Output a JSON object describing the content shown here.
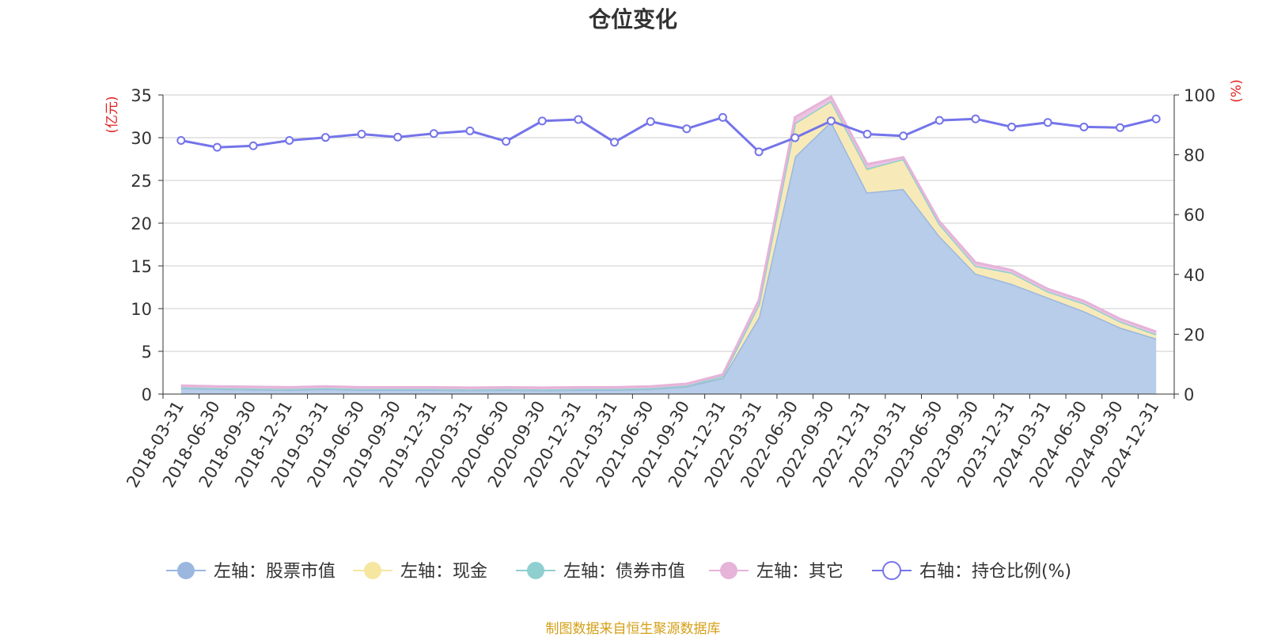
{
  "chart_data": {
    "type": "area",
    "title": "仓位变化",
    "left_axis_label": "(亿元)",
    "right_axis_label": "(%)",
    "left_ylim": [
      0,
      35
    ],
    "left_ticks": [
      0,
      5,
      10,
      15,
      20,
      25,
      30,
      35
    ],
    "right_ylim": [
      0,
      100
    ],
    "right_ticks": [
      0,
      20,
      40,
      60,
      80,
      100
    ],
    "categories": [
      "2018-03-31",
      "2018-06-30",
      "2018-09-30",
      "2018-12-31",
      "2019-03-31",
      "2019-06-30",
      "2019-09-30",
      "2019-12-31",
      "2020-03-31",
      "2020-06-30",
      "2020-09-30",
      "2020-12-31",
      "2021-03-31",
      "2021-06-30",
      "2021-09-30",
      "2021-12-31",
      "2022-03-31",
      "2022-06-30",
      "2022-09-30",
      "2022-12-31",
      "2023-03-31",
      "2023-06-30",
      "2023-09-30",
      "2023-12-31",
      "2024-03-31",
      "2024-06-30",
      "2024-09-30",
      "2024-12-31"
    ],
    "stacked_series": [
      {
        "name": "左轴：股票市值",
        "color": "#9bb7e0",
        "fill": "#b8cde9",
        "values": [
          0.7,
          0.6,
          0.55,
          0.5,
          0.6,
          0.5,
          0.5,
          0.5,
          0.45,
          0.5,
          0.45,
          0.5,
          0.5,
          0.6,
          0.9,
          1.9,
          9.0,
          27.8,
          31.9,
          23.6,
          24.0,
          18.5,
          14.1,
          12.9,
          11.3,
          9.7,
          7.8,
          6.5
        ]
      },
      {
        "name": "左轴：现金",
        "color": "#f5e6a0",
        "fill": "#f8eab8",
        "values": [
          0.1,
          0.1,
          0.1,
          0.1,
          0.1,
          0.1,
          0.1,
          0.1,
          0.1,
          0.1,
          0.1,
          0.1,
          0.1,
          0.1,
          0.1,
          0.2,
          1.5,
          3.9,
          2.4,
          2.6,
          3.5,
          1.4,
          0.9,
          1.3,
          0.7,
          0.9,
          0.7,
          0.5
        ]
      },
      {
        "name": "左轴：债券市值",
        "color": "#8fcfd0",
        "fill": "#9dd5d5",
        "values": [
          0,
          0,
          0,
          0,
          0,
          0,
          0,
          0,
          0,
          0,
          0,
          0,
          0,
          0,
          0,
          0,
          0,
          0,
          0,
          0.2,
          0,
          0,
          0,
          0,
          0,
          0,
          0,
          0
        ]
      },
      {
        "name": "左轴：其它",
        "color": "#e6b3d9",
        "fill": "#ecc4e0",
        "values": [
          0.2,
          0.2,
          0.2,
          0.2,
          0.2,
          0.2,
          0.2,
          0.2,
          0.2,
          0.2,
          0.2,
          0.2,
          0.2,
          0.2,
          0.2,
          0.2,
          0.5,
          0.7,
          0.5,
          0.5,
          0.2,
          0.3,
          0.4,
          0.3,
          0.3,
          0.3,
          0.3,
          0.3
        ]
      }
    ],
    "line_series": {
      "name": "右轴：持仓比例(%)",
      "color": "#7474ea",
      "values": [
        84.8,
        82.5,
        83.0,
        84.8,
        85.8,
        86.9,
        85.9,
        87.1,
        88.0,
        84.5,
        91.3,
        91.8,
        84.2,
        91.1,
        88.7,
        92.5,
        81.0,
        85.7,
        91.3,
        86.9,
        86.3,
        91.5,
        92.0,
        89.3,
        90.8,
        89.3,
        89.1,
        92.0
      ]
    },
    "legend": [
      "左轴：股票市值",
      "左轴：现金",
      "左轴：债券市值",
      "左轴：其它",
      "右轴：持仓比例(%)"
    ]
  },
  "source_text": "制图数据来自恒生聚源数据库"
}
